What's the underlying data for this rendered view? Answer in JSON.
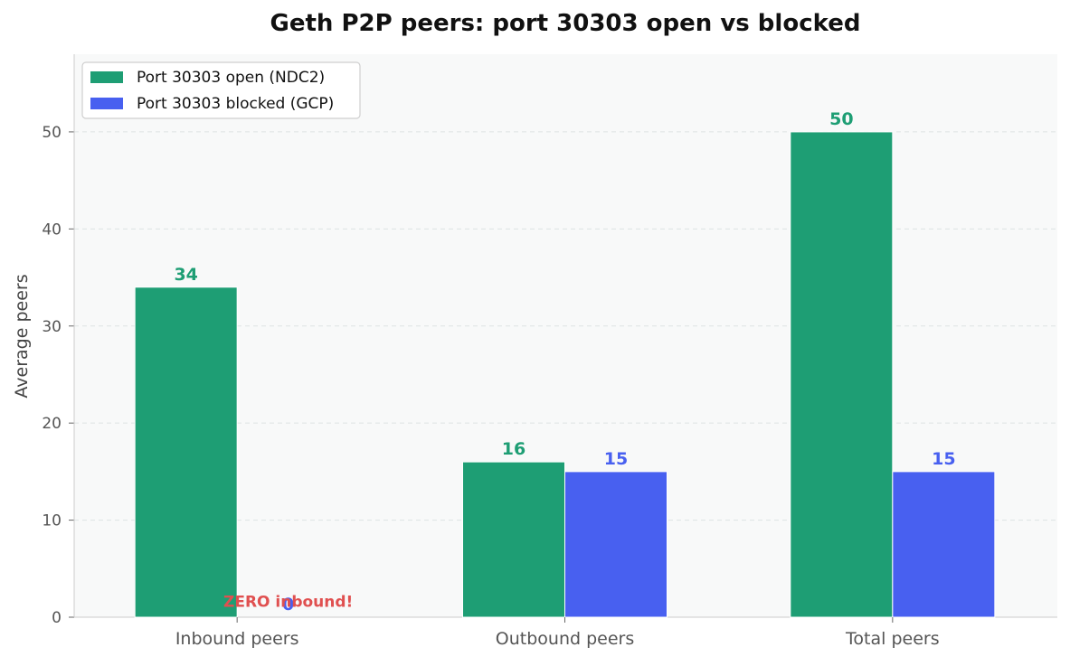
{
  "chart_data": {
    "type": "bar",
    "title": "Geth P2P peers: port 30303 open vs blocked",
    "xlabel": "",
    "ylabel": "Average peers",
    "categories": [
      "Inbound peers",
      "Outbound peers",
      "Total peers"
    ],
    "ylim": [
      0,
      58
    ],
    "yticks": [
      0,
      10,
      20,
      30,
      40,
      50
    ],
    "grid": true,
    "legend_position": "top-left",
    "series": [
      {
        "name": "Port 30303 open (NDC2)",
        "values": [
          34,
          16,
          50
        ],
        "color": "#1e9e74"
      },
      {
        "name": "Port 30303 blocked (GCP)",
        "values": [
          0,
          15,
          15
        ],
        "color": "#4860f0"
      }
    ],
    "annotations": [
      {
        "text": "ZERO inbound!",
        "category": "Inbound peers",
        "y": 0.5,
        "color": "#e05050"
      }
    ]
  }
}
